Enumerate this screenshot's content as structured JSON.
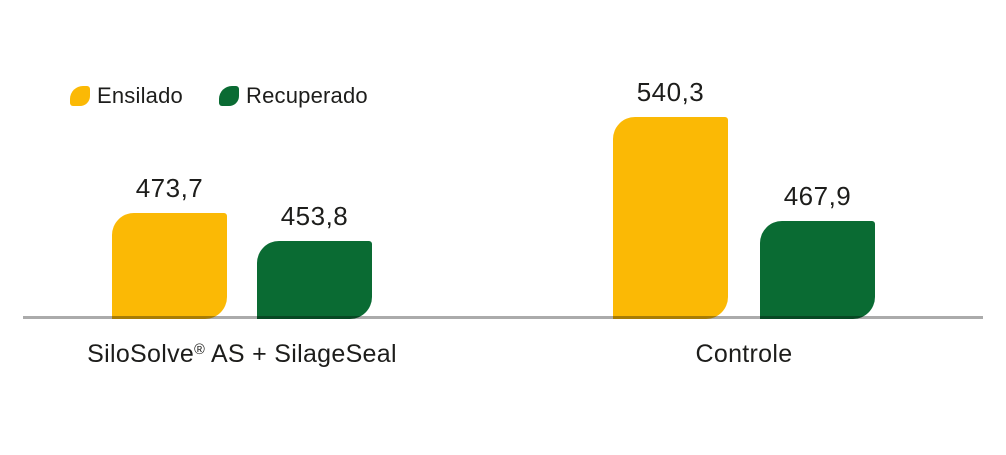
{
  "chart_data": {
    "type": "bar",
    "title": "",
    "categories": [
      "SiloSolve® AS + SilageSeal",
      "Controle"
    ],
    "series": [
      {
        "name": "Ensilado",
        "color": "#FBB905",
        "values": [
          473.7,
          540.3
        ],
        "display_values": [
          "473,7",
          "540,3"
        ]
      },
      {
        "name": "Recuperado",
        "color": "#0A6B33",
        "values": [
          453.8,
          467.9
        ],
        "display_values": [
          "453,8",
          "467,9"
        ]
      }
    ],
    "ylim": [
      400,
      545
    ],
    "grid": false,
    "legend_position": "top-left",
    "axis_line_color": "#ABABAB",
    "text_color": "#1D1D1B",
    "value_label_format": "comma-decimal"
  },
  "legend": {
    "items": [
      {
        "label": "Ensilado"
      },
      {
        "label": "Recuperado"
      }
    ]
  },
  "x_axis": {
    "labels": [
      {
        "pre": "SiloSolve",
        "reg": "®",
        "post": " AS + SilageSeal"
      },
      {
        "pre": "Controle",
        "reg": "",
        "post": ""
      }
    ]
  }
}
